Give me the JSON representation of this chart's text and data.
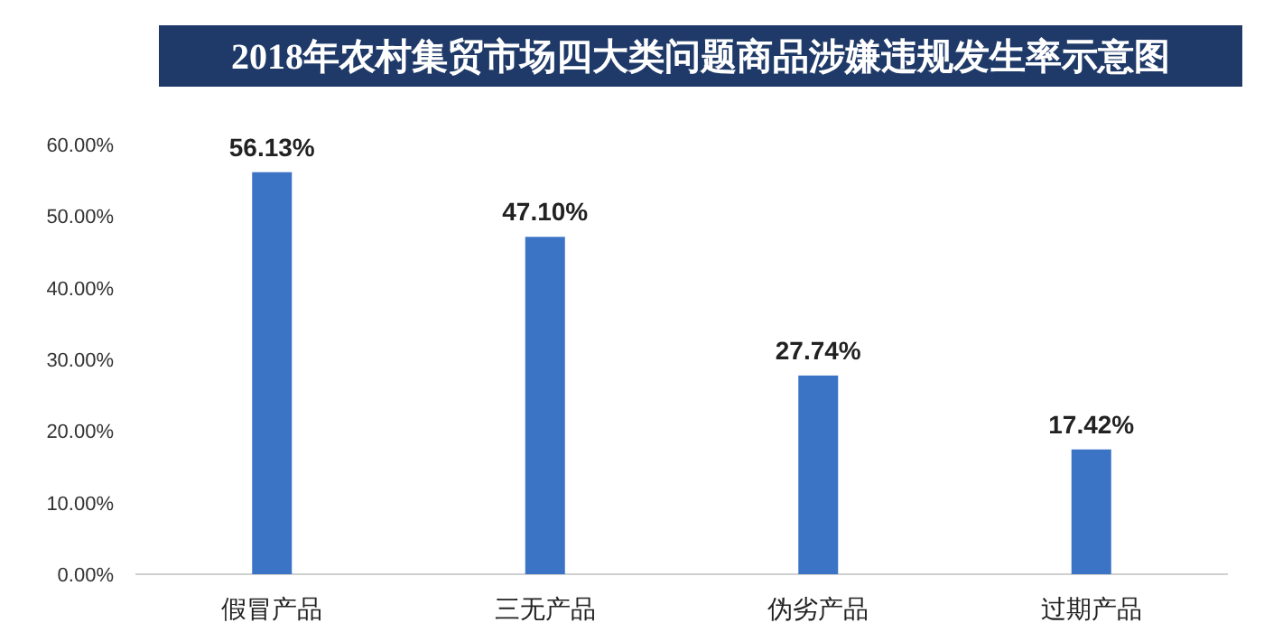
{
  "chart_data": {
    "type": "bar",
    "title": "2018年农村集贸市场四大类问题商品涉嫌违规发生率示意图",
    "categories": [
      "假冒产品",
      "三无产品",
      "伪劣产品",
      "过期产品"
    ],
    "values": [
      56.13,
      47.1,
      27.74,
      17.42
    ],
    "value_labels": [
      "56.13%",
      "47.10%",
      "27.74%",
      "17.42%"
    ],
    "color": "#3b73c5",
    "ylim": [
      0,
      60
    ],
    "yticks": [
      {
        "value": 0,
        "label": "0.00%"
      },
      {
        "value": 10,
        "label": "10.00%"
      },
      {
        "value": 20,
        "label": "20.00%"
      },
      {
        "value": 30,
        "label": "30.00%"
      },
      {
        "value": 40,
        "label": "40.00%"
      },
      {
        "value": 50,
        "label": "50.00%"
      },
      {
        "value": 60,
        "label": "60.00%"
      }
    ]
  }
}
